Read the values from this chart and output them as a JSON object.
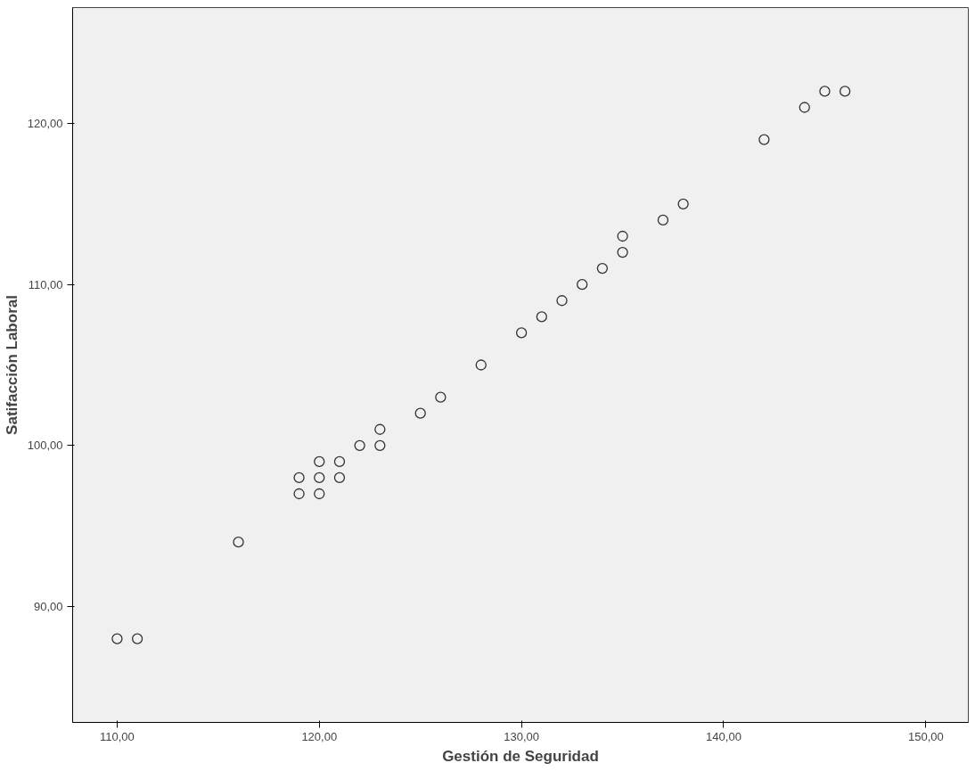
{
  "chart_data": {
    "type": "scatter",
    "xlabel": "Gestión de Seguridad",
    "ylabel": "Satifacción Laboral",
    "x": [
      110,
      111,
      116,
      119,
      119,
      120,
      120,
      120,
      121,
      121,
      122,
      123,
      123,
      125,
      126,
      128,
      130,
      131,
      132,
      133,
      134,
      135,
      135,
      137,
      138,
      142,
      144,
      145,
      146
    ],
    "series": [
      {
        "color": "#333333",
        "values": [
          88,
          88,
          94,
          98,
          97,
          99,
          98,
          97,
          99,
          98,
          100,
          101,
          100,
          102,
          103,
          105,
          107,
          108,
          109,
          110,
          111,
          113,
          112,
          114,
          115,
          119,
          121,
          122,
          122
        ]
      }
    ],
    "xlim": [
      107.8,
      152.1
    ],
    "ylim": [
      82.8,
      127.2
    ],
    "xticks": [
      {
        "value": 110,
        "label": "110,00"
      },
      {
        "value": 120,
        "label": "120,00"
      },
      {
        "value": 130,
        "label": "130,00"
      },
      {
        "value": 140,
        "label": "140,00"
      },
      {
        "value": 150,
        "label": "150,00"
      }
    ],
    "yticks": [
      {
        "value": 90,
        "label": "90,00"
      },
      {
        "value": 100,
        "label": "100,00"
      },
      {
        "value": 110,
        "label": "110,00"
      },
      {
        "value": 120,
        "label": "120,00"
      }
    ],
    "grid": false,
    "marker": "circle"
  }
}
